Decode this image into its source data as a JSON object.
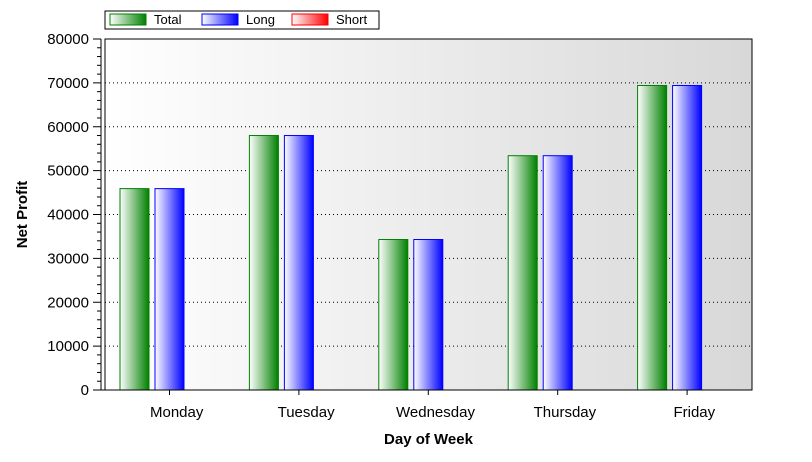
{
  "chart_data": {
    "type": "bar",
    "categories": [
      "Monday",
      "Tuesday",
      "Wednesday",
      "Thursday",
      "Friday"
    ],
    "series": [
      {
        "name": "Total",
        "values": [
          45900,
          58000,
          34300,
          53400,
          69400
        ]
      },
      {
        "name": "Long",
        "values": [
          45900,
          58000,
          34300,
          53400,
          69400
        ]
      },
      {
        "name": "Short",
        "values": [
          0,
          0,
          0,
          0,
          0
        ]
      }
    ],
    "title": "",
    "xlabel": "Day of Week",
    "ylabel": "Net Profit",
    "ylim": [
      0,
      80000
    ],
    "yticks": [
      "0",
      "10000",
      "20000",
      "30000",
      "40000",
      "50000",
      "60000",
      "70000",
      "80000"
    ],
    "grid": true,
    "legend": "top-left",
    "colors": {
      "Total": "#008000",
      "Long": "#0000ff",
      "Short": "#ff0000"
    }
  }
}
